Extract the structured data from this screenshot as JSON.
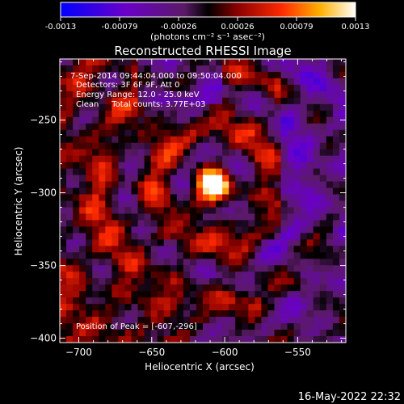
{
  "chart_data": {
    "type": "heatmap",
    "title": "Reconstructed RHESSI Image",
    "xlabel": "Heliocentric X (arcsec)",
    "ylabel": "Heliocentric Y (arcsec)",
    "xlim": [
      -713,
      -517
    ],
    "ylim": [
      -403,
      -208
    ],
    "x_ticks": [
      -700,
      -650,
      -600,
      -550
    ],
    "y_ticks": [
      -250,
      -300,
      -350,
      -400
    ],
    "colorbar": {
      "min": -0.0013,
      "max": 0.0013,
      "ticks": [
        "-0.0013",
        "-0.00079",
        "-0.00026",
        "0.00026",
        "0.00079",
        "0.0013"
      ],
      "unit_label": "(photons cm⁻² s⁻¹ asec⁻²)"
    },
    "info_lines": [
      "7-Sep-2014 09:44:04.000 to 09:50:04.000",
      "Detectors: 3F 6F 9F, Att 0",
      "Energy Range: 12.0 - 25.0 keV",
      "Clean     Total counts: 3.77E+03"
    ],
    "peak_label": "Position of Peak = [-607,-296]",
    "peak": {
      "x": -607,
      "y": -296
    }
  },
  "footer": {
    "timestamp": "16-May-2022 22:32"
  }
}
